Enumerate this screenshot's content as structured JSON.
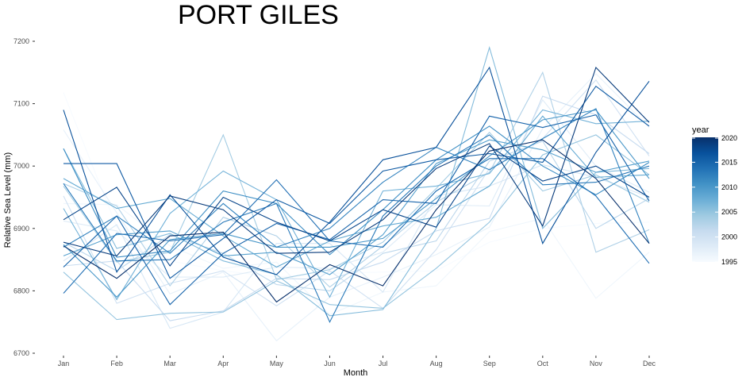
{
  "chart_data": {
    "type": "line",
    "title": "PORT GILES",
    "xlabel": "Month",
    "ylabel": "Relative Sea Level (mm)",
    "categories": [
      "Jan",
      "Feb",
      "Mar",
      "Apr",
      "May",
      "Jun",
      "Jul",
      "Aug",
      "Sep",
      "Oct",
      "Nov",
      "Dec"
    ],
    "ylim": [
      6700,
      7225
    ],
    "yticks": [
      6700,
      6800,
      6900,
      7000,
      7100,
      7200
    ],
    "grid": false,
    "legend": {
      "title": "year",
      "position": "right",
      "type": "colorbar",
      "range": [
        1995,
        2020
      ],
      "ticks": [
        1995,
        2000,
        2005,
        2010,
        2015,
        2020
      ],
      "color_low": "#f7fbff",
      "color_high": "#08306b"
    },
    "series": [
      {
        "year": 1995,
        "values": [
          7118,
          6902,
          6848,
          6832,
          6822,
          6828,
          6830,
          6832,
          6878,
          6900,
          6908,
          6910
        ]
      },
      {
        "year": 1996,
        "values": [
          6940,
          6938,
          6872,
          6836,
          6846,
          6762,
          6798,
          6808,
          6895,
          6916,
          6788,
          6862
        ]
      },
      {
        "year": 1997,
        "values": [
          7058,
          6925,
          6795,
          6830,
          6720,
          6790,
          6822,
          6858,
          6902,
          7060,
          7148,
          7062
        ]
      },
      {
        "year": 1998,
        "values": [
          6912,
          6896,
          6822,
          6822,
          6838,
          6836,
          6862,
          6938,
          6936,
          7106,
          7000,
          6958
        ]
      },
      {
        "year": 1999,
        "values": [
          6848,
          6906,
          6740,
          6766,
          6876,
          6876,
          6798,
          6952,
          6968,
          7002,
          6982,
          6950
        ]
      },
      {
        "year": 2000,
        "values": [
          6952,
          6780,
          6812,
          6832,
          6776,
          6832,
          6772,
          6866,
          6996,
          7044,
          7138,
          7016
        ]
      },
      {
        "year": 2001,
        "values": [
          6840,
          6848,
          6752,
          6768,
          6820,
          6818,
          6846,
          6896,
          6916,
          7112,
          7082,
          7020
        ]
      },
      {
        "year": 2002,
        "values": [
          6878,
          6832,
          6890,
          6860,
          6810,
          6800,
          6860,
          6880,
          7008,
          7040,
          6900,
          6948
        ]
      },
      {
        "year": 2003,
        "values": [
          6972,
          6936,
          6808,
          6918,
          6888,
          6806,
          6872,
          6942,
          6990,
          7150,
          6862,
          6898
        ]
      },
      {
        "year": 2004,
        "values": [
          6968,
          6846,
          6862,
          7050,
          6818,
          6834,
          6878,
          6964,
          7054,
          6960,
          6986,
          6942
        ]
      },
      {
        "year": 2005,
        "values": [
          6830,
          6754,
          6764,
          6766,
          6816,
          6778,
          6772,
          6836,
          6910,
          7018,
          7050,
          6986
        ]
      },
      {
        "year": 2006,
        "values": [
          7028,
          6868,
          6892,
          6848,
          6826,
          6760,
          6770,
          6900,
          7190,
          6900,
          6990,
          6996
        ]
      },
      {
        "year": 2007,
        "values": [
          6932,
          6786,
          6924,
          6992,
          6946,
          6790,
          6960,
          6968,
          6988,
          7090,
          7068,
          7072
        ]
      },
      {
        "year": 2008,
        "values": [
          6980,
          6932,
          6948,
          6888,
          6838,
          6880,
          6904,
          6918,
          6968,
          7080,
          6982,
          6986
        ]
      },
      {
        "year": 2009,
        "values": [
          6856,
          6890,
          6896,
          6856,
          6862,
          6826,
          6890,
          7004,
          7042,
          7026,
          6990,
          7008
        ]
      },
      {
        "year": 2010,
        "values": [
          6874,
          6790,
          6882,
          6892,
          6870,
          6870,
          6884,
          6948,
          7016,
          7074,
          7090,
          6980
        ]
      },
      {
        "year": 2011,
        "values": [
          7028,
          6854,
          6864,
          6960,
          6940,
          6858,
          6930,
          7010,
          7064,
          7000,
          6954,
          7006
        ]
      },
      {
        "year": 2012,
        "values": [
          6870,
          6920,
          6860,
          6940,
          6870,
          6900,
          6974,
          7030,
          6994,
          7044,
          7092,
          6876
        ]
      },
      {
        "year": 2013,
        "values": [
          6972,
          6848,
          6850,
          6910,
          6940,
          6750,
          6920,
          7000,
          7050,
          6970,
          6974,
          7000
        ]
      },
      {
        "year": 2014,
        "values": [
          6796,
          6892,
          6880,
          6890,
          6978,
          6880,
          6870,
          6960,
          7012,
          7012,
          6952,
          6844
        ]
      },
      {
        "year": 2015,
        "values": [
          6838,
          6920,
          6778,
          6860,
          6908,
          6882,
          6946,
          6940,
          7080,
          7062,
          7082,
          6944
        ]
      },
      {
        "year": 2016,
        "values": [
          7004,
          7004,
          6820,
          6884,
          6946,
          6908,
          6992,
          7010,
          7020,
          7006,
          7128,
          7064
        ]
      },
      {
        "year": 2017,
        "values": [
          7090,
          6830,
          6954,
          6854,
          6826,
          6910,
          7010,
          7030,
          7158,
          6876,
          7022,
          7136
        ]
      },
      {
        "year": 2018,
        "values": [
          6914,
          6966,
          6840,
          6950,
          6910,
          6880,
          6930,
          6902,
          7032,
          6976,
          7000,
          6950
        ]
      },
      {
        "year": 2019,
        "values": [
          6878,
          6856,
          6952,
          6930,
          6860,
          6862,
          6914,
          6996,
          7036,
          6904,
          7158,
          7070
        ]
      },
      {
        "year": 2020,
        "values": [
          6872,
          6820,
          6888,
          6894,
          6782,
          6842,
          6808,
          6930,
          7024,
          7042,
          6980,
          6876
        ]
      }
    ]
  }
}
